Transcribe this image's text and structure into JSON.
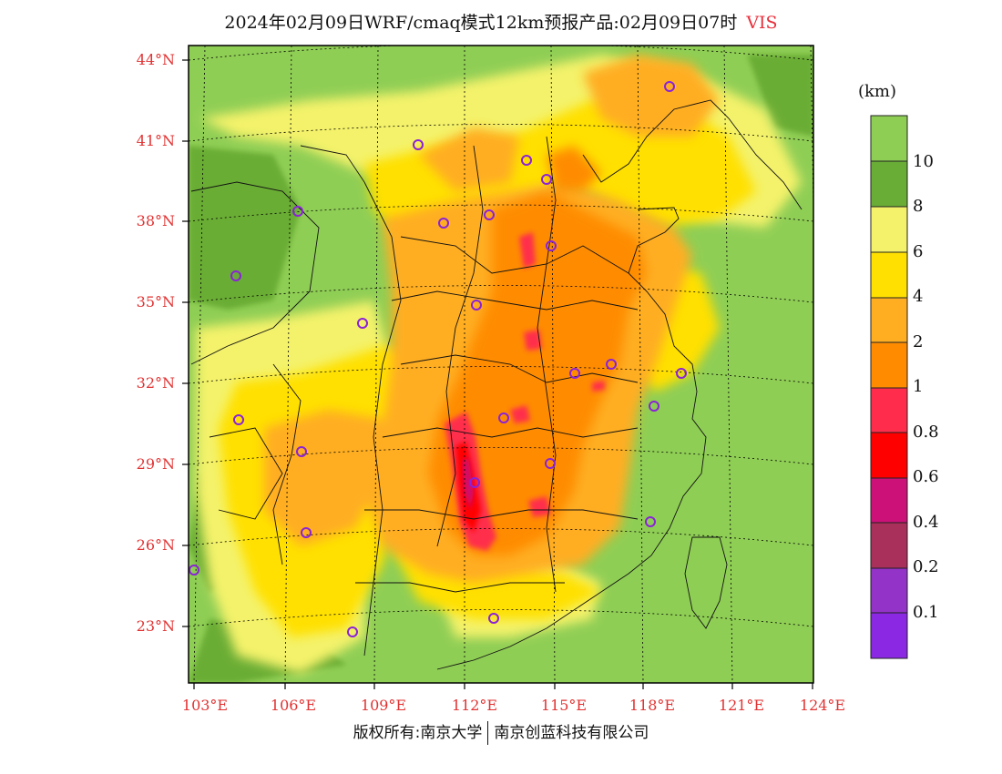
{
  "title": {
    "main": "2024年02月09日WRF/cmaq模式12km预报产品:02月09日07时",
    "variable": "VIS"
  },
  "colorbar": {
    "units": "(km)",
    "levels": [
      "10",
      "8",
      "6",
      "4",
      "2",
      "1",
      "0.8",
      "0.6",
      "0.4",
      "0.2",
      "0.1"
    ],
    "colors": [
      "#8fce55",
      "#6aad36",
      "#f4f26a",
      "#ffe000",
      "#ffae22",
      "#ff8c00",
      "#ff2d4b",
      "#ff0000",
      "#cc1178",
      "#a8305a",
      "#9333c8",
      "#8a28e4"
    ]
  },
  "axes": {
    "lat_labels": [
      "44°N",
      "41°N",
      "38°N",
      "35°N",
      "32°N",
      "29°N",
      "26°N",
      "23°N"
    ],
    "lon_labels": [
      "103°E",
      "106°E",
      "109°E",
      "112°E",
      "115°E",
      "118°E",
      "121°E",
      "124°E"
    ]
  },
  "footer": {
    "left": "版权所有:南京大学",
    "right": "南京创蓝科技有限公司"
  }
}
